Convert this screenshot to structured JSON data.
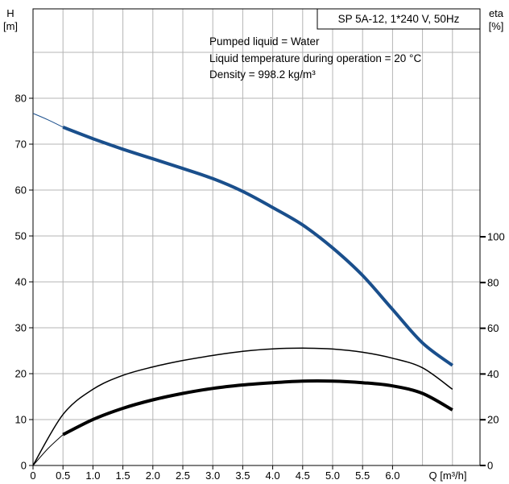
{
  "chart_data": {
    "type": "line",
    "title": "SP 5A-12, 1*240 V, 50Hz",
    "info_lines": [
      "Pumped liquid = Water",
      "Liquid temperature during operation = 20 °C",
      "Density = 998.2 kg/m³"
    ],
    "ylabel_left": [
      "H",
      "[m]"
    ],
    "ylabel_right": [
      "eta",
      "[%]"
    ],
    "xlabel": "Q [m³/h]",
    "x_ticks": [
      "0",
      "0.5",
      "1.0",
      "1.5",
      "2.0",
      "2.5",
      "3.0",
      "3.5",
      "4.0",
      "4.5",
      "5.0",
      "5.5",
      "6.0"
    ],
    "y_left_ticks": [
      "0",
      "10",
      "20",
      "30",
      "40",
      "50",
      "60",
      "70",
      "80"
    ],
    "y_right_ticks": [
      "0",
      "20",
      "40",
      "60",
      "80",
      "100"
    ],
    "xlim": [
      0,
      7.5
    ],
    "ylim_left": [
      0,
      100
    ],
    "ylim_right": [
      0,
      175
    ],
    "grid": true,
    "colors": {
      "head": "#1a4f8c",
      "efficiency": "#000000",
      "grid": "#b4b4b4"
    },
    "series": [
      {
        "id": "head_extension",
        "axis": "left",
        "x": [
          0,
          0.25,
          0.5
        ],
        "y": [
          76.7,
          75.3,
          73.7
        ]
      },
      {
        "id": "head",
        "axis": "left",
        "x": [
          0.5,
          1.0,
          1.5,
          2.0,
          2.5,
          3.0,
          3.5,
          4.0,
          4.5,
          5.0,
          5.5,
          6.0,
          6.5,
          7.0
        ],
        "y": [
          73.7,
          71.2,
          68.9,
          66.8,
          64.7,
          62.5,
          59.7,
          56.2,
          52.4,
          47.4,
          41.4,
          34.0,
          26.7,
          21.8
        ]
      },
      {
        "id": "efficiency_upper",
        "axis": "right",
        "x": [
          0,
          0.5,
          1.0,
          1.5,
          2.0,
          2.5,
          3.0,
          3.5,
          4.0,
          4.5,
          5.0,
          5.5,
          6.0,
          6.5,
          7.0
        ],
        "y": [
          0,
          22.3,
          33.3,
          39.4,
          43.1,
          45.9,
          48.1,
          49.9,
          51.0,
          51.3,
          50.9,
          49.5,
          46.9,
          42.7,
          33.3
        ]
      },
      {
        "id": "efficiency_extension",
        "axis": "right",
        "x": [
          0,
          0.25,
          0.5
        ],
        "y": [
          0,
          7.4,
          13.5
        ]
      },
      {
        "id": "efficiency_lower",
        "axis": "right",
        "x": [
          0.5,
          1.0,
          1.5,
          2.0,
          2.5,
          3.0,
          3.5,
          4.0,
          4.5,
          5.0,
          5.5,
          6.0,
          6.5,
          7.0
        ],
        "y": [
          13.5,
          20.1,
          25.0,
          28.7,
          31.5,
          33.7,
          35.2,
          36.2,
          36.9,
          36.9,
          36.2,
          34.8,
          31.5,
          24.3
        ]
      }
    ]
  }
}
